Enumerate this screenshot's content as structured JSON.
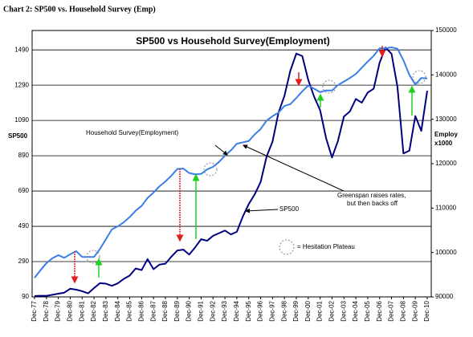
{
  "header": {
    "title": "Chart 2: SP500 vs. Household Survey (Emp)"
  },
  "chart_data": {
    "type": "line",
    "title": "SP500 vs Household Survey(Employment)",
    "y_label": "SP500",
    "y2_label": [
      "Employ",
      "x1000"
    ],
    "categories": [
      "Dec-77",
      null,
      "Dec-78",
      null,
      "Dec-79",
      null,
      "Dec-80",
      null,
      "Dec-81",
      null,
      "Dec-82",
      null,
      "Dec-83",
      null,
      "Dec-84",
      null,
      "Dec-85",
      null,
      "Dec-86",
      null,
      "Dec-87",
      null,
      "Dec-88",
      null,
      "Dec-89",
      null,
      "Dec-90",
      null,
      "Dec-91",
      null,
      "Dec-92",
      null,
      "Dec-93",
      null,
      "Dec-94",
      null,
      "Dec-95",
      null,
      "Dec-96",
      null,
      "Dec-97",
      null,
      "Dec-98",
      null,
      "Dec-99",
      null,
      "Dec-00",
      null,
      "Dec-01",
      null,
      "Dec-02",
      null,
      "Dec-03",
      null,
      "Dec-04",
      null,
      "Dec-05",
      null,
      "Dec-06",
      null,
      "Dec-07",
      null,
      "Dec-08",
      null,
      "Dec-09",
      null,
      "Dec-10"
    ],
    "series": [
      {
        "name": "SP500",
        "color": "#000080",
        "axis": "y",
        "values": [
          95,
          96,
          96,
          102,
          108,
          114,
          136,
          131,
          122,
          110,
          140,
          168,
          165,
          153,
          167,
          192,
          211,
          251,
          242,
          304,
          247,
          273,
          278,
          318,
          353,
          358,
          330,
          371,
          417,
          408,
          436,
          451,
          466,
          444,
          459,
          545,
          616,
          671,
          741,
          885,
          970,
          1134,
          1229,
          1373,
          1469,
          1455,
          1320,
          1224,
          1148,
          990,
          880,
          975,
          1112,
          1141,
          1212,
          1191,
          1248,
          1270,
          1418,
          1503,
          1468,
          1280,
          903,
          919,
          1115,
          1031,
          1258
        ]
      },
      {
        "name": "Household Survey(Employment)",
        "color": "#3a7ee8",
        "axis": "y2",
        "values": [
          94300,
          96000,
          97600,
          98700,
          99400,
          98800,
          99600,
          100300,
          99000,
          99000,
          99000,
          100800,
          103000,
          105200,
          105900,
          106800,
          108000,
          109400,
          110500,
          112300,
          113500,
          114900,
          116000,
          117300,
          118800,
          118900,
          117900,
          117600,
          117700,
          118700,
          119300,
          120400,
          121800,
          123000,
          124500,
          124800,
          125100,
          126600,
          127800,
          129700,
          130700,
          131500,
          133000,
          133400,
          134800,
          136300,
          137600,
          136900,
          136100,
          136500,
          136500,
          137700,
          138500,
          139300,
          140200,
          141600,
          143000,
          144300,
          146000,
          146000,
          146200,
          145900,
          143300,
          140000,
          137800,
          139300,
          139200
        ]
      }
    ],
    "ylim": [
      90,
      1600
    ],
    "yticks": [
      90,
      290,
      490,
      690,
      890,
      1090,
      1290,
      1490
    ],
    "y2lim": [
      90000,
      150000
    ],
    "y2ticks": [
      90000,
      100000,
      110000,
      120000,
      130000,
      140000,
      150000
    ],
    "grid": true,
    "annotations": [
      "Household Survey(Employment)",
      "Greenspan raises rates,",
      "but then backs off",
      "SP500",
      "= Hesitation Plateau"
    ]
  }
}
